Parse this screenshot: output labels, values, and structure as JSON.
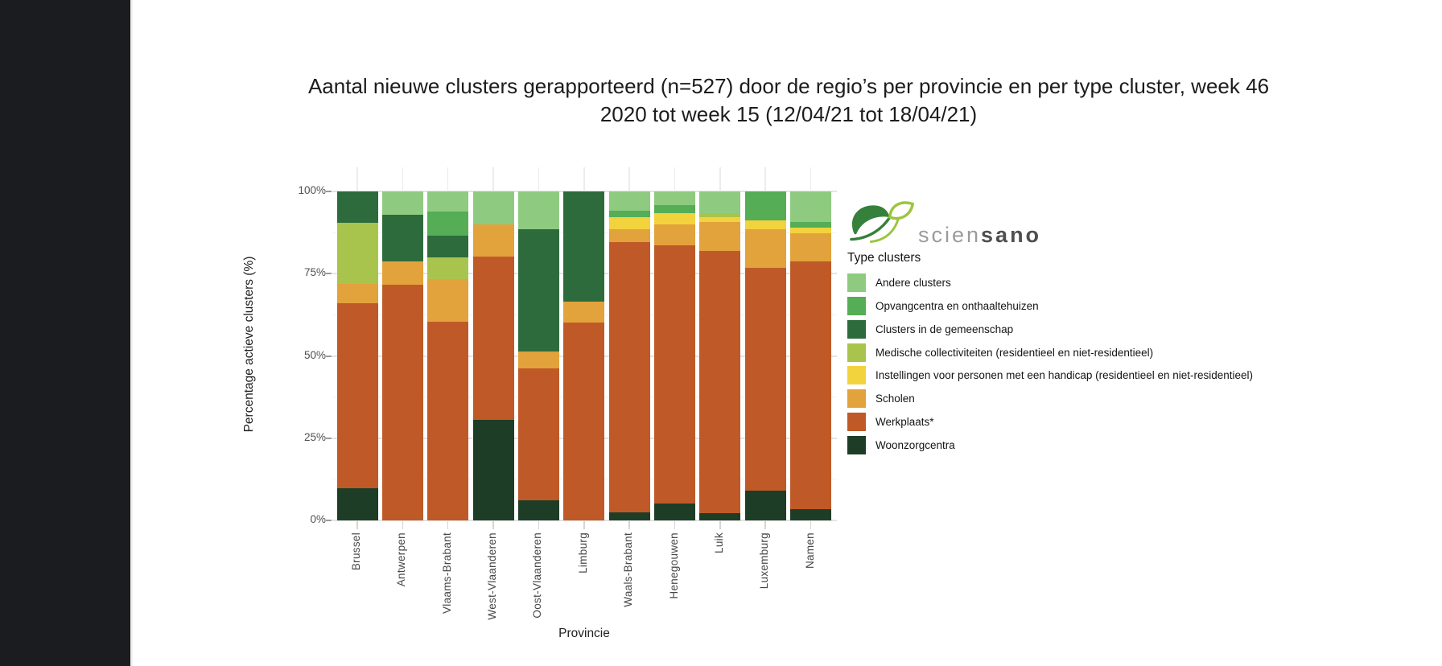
{
  "title": {
    "line1": "Aantal nieuwe clusters gerapporteerd (n=527) door de regio’s per provincie en per type cluster, week 46",
    "line2": "2020 tot week 15 (12/04/21 tot 18/04/21)"
  },
  "logo": {
    "text_light": "scien",
    "text_bold": "sano",
    "leaf_dark_color": "#35803b",
    "leaf_light_color": "#9bc53d"
  },
  "legend": {
    "title": "Type clusters"
  },
  "chart_data": {
    "type": "bar",
    "subtype": "stacked-percentage",
    "title": "Aantal nieuwe clusters gerapporteerd (n=527) door de regio’s per provincie en per type cluster, week 46 2020 tot week 15 (12/04/21 tot 18/04/21)",
    "xlabel": "Provincie",
    "ylabel": "Percentage actieve clusters (%)",
    "ylim": [
      0,
      100
    ],
    "yticks": [
      {
        "label": "0%",
        "value": 0
      },
      {
        "label": "25%",
        "value": 25
      },
      {
        "label": "50%",
        "value": 50
      },
      {
        "label": "75%",
        "value": 75
      },
      {
        "label": "100%",
        "value": 100
      }
    ],
    "grid": "major-horizontal and vertical category gridlines, light gray on white",
    "legend_position": "right",
    "stack_order_note": "series listed in legend order (top of legend = top of bar); bars stack bottom-up in reverse of this list",
    "categories": [
      "Brussel",
      "Antwerpen",
      "Vlaams-Brabant",
      "West-Vlaanderen",
      "Oost-Vlaanderen",
      "Limburg",
      "Waals-Brabant",
      "Henegouwen",
      "Luik",
      "Luxemburg",
      "Namen"
    ],
    "series": [
      {
        "name": "Andere clusters",
        "color": "#8ecb80",
        "values": [
          0,
          7.0,
          6.1,
          10.0,
          11.5,
          0,
          5.8,
          4.2,
          6.5,
          0,
          9.2
        ]
      },
      {
        "name": "Opvangcentra en onthaaltehuizen",
        "color": "#55ad55",
        "values": [
          0,
          0,
          7.4,
          0,
          0,
          0,
          2.0,
          2.3,
          0,
          8.9,
          1.9
        ]
      },
      {
        "name": "Clusters in de gemeenschap",
        "color": "#2e6b3c",
        "values": [
          9.5,
          14.3,
          6.5,
          0,
          37.1,
          33.4,
          0,
          0,
          0,
          0,
          0
        ]
      },
      {
        "name": "Medische collectiviteiten (residentieel en niet-residentieel)",
        "color": "#a9c44d",
        "values": [
          18.7,
          0,
          6.6,
          0,
          0,
          0,
          0,
          0,
          1.3,
          0,
          0
        ]
      },
      {
        "name": "Instellingen voor personen met een handicap (residentieel en niet-residentieel)",
        "color": "#f2d33d",
        "values": [
          0,
          0,
          0,
          0,
          0,
          0,
          3.7,
          3.4,
          1.4,
          2.6,
          1.6
        ]
      },
      {
        "name": "Scholen",
        "color": "#e2a23c",
        "values": [
          5.7,
          7.1,
          13.0,
          9.9,
          5.3,
          6.5,
          3.9,
          6.5,
          8.8,
          11.7,
          8.6
        ]
      },
      {
        "name": "Werkplaats*",
        "color": "#bf5a28",
        "values": [
          56.3,
          71.6,
          60.4,
          49.5,
          39.9,
          60.1,
          82.1,
          78.5,
          79.7,
          67.8,
          75.2
        ]
      },
      {
        "name": "Woonzorgcentra",
        "color": "#1e3d26",
        "values": [
          9.8,
          0,
          0,
          30.6,
          6.2,
          0,
          2.5,
          5.1,
          2.3,
          9.0,
          3.5
        ]
      }
    ]
  }
}
